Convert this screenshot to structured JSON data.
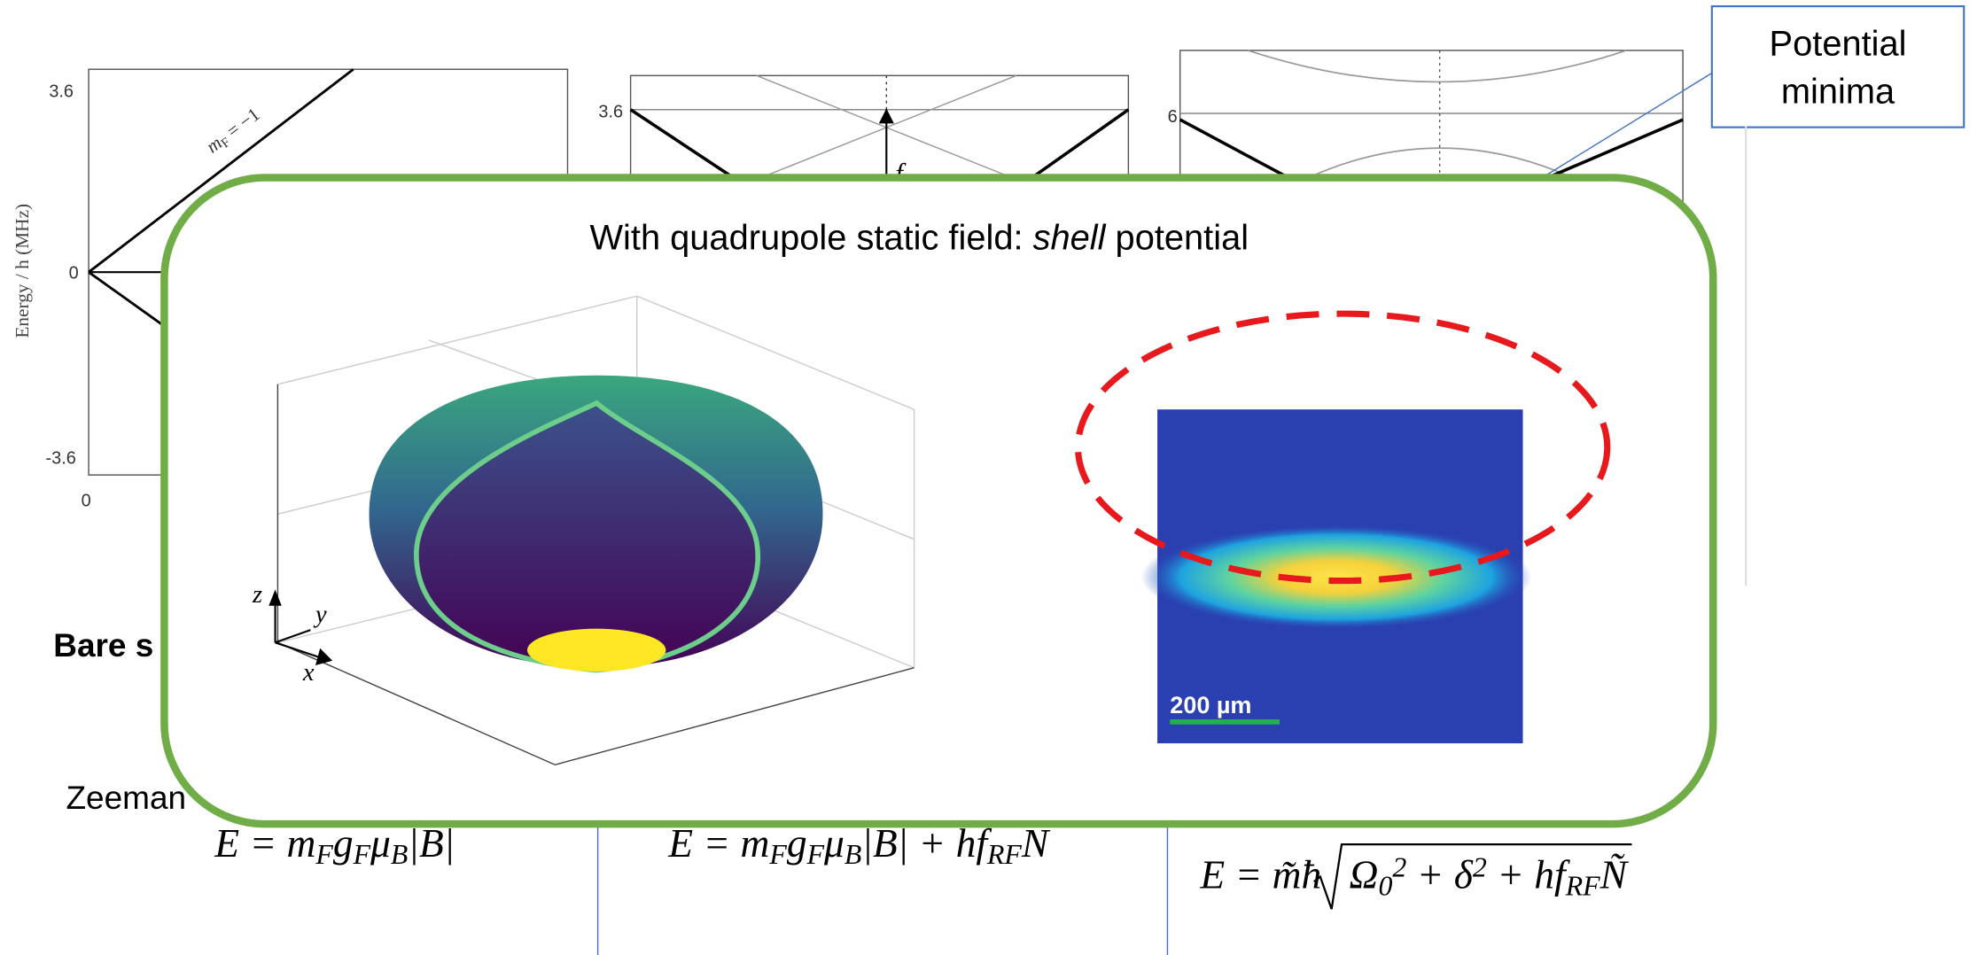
{
  "plots": [
    {
      "yticks": [
        "3.6",
        "0",
        "-3.6"
      ],
      "xticks": [
        "0"
      ],
      "ylabel": "Energy / h (MHz)",
      "line_label": [
        {
          "text": "m",
          "italic": true
        },
        {
          "text": "F",
          "sub": true
        },
        {
          "text": " = −1"
        }
      ]
    },
    {
      "yticks": [
        "3.6"
      ],
      "arrow_label": "f"
    },
    {
      "yticks": [
        "6"
      ]
    }
  ],
  "callout": {
    "lines": [
      "Potential",
      "minima"
    ]
  },
  "background_texts": {
    "heading": "Bare s",
    "body": "Zeeman"
  },
  "overlay": {
    "title": [
      {
        "text": "With quadrupole static field: "
      },
      {
        "text": "shell",
        "italic": true
      },
      {
        "text": " potential"
      }
    ],
    "axis_labels": [
      "z",
      "y",
      "x"
    ],
    "scale_bar": "200 µm"
  },
  "equations": [
    [
      {
        "text": "E = m"
      },
      {
        "text": "F",
        "sub": true
      },
      {
        "text": "g"
      },
      {
        "text": "F",
        "sub": true
      },
      {
        "text": "μ"
      },
      {
        "text": "B",
        "sub": true
      },
      {
        "text": "|B|"
      }
    ],
    [
      {
        "text": "E = m"
      },
      {
        "text": "F",
        "sub": true
      },
      {
        "text": "g"
      },
      {
        "text": "F",
        "sub": true
      },
      {
        "text": "μ"
      },
      {
        "text": "B",
        "sub": true
      },
      {
        "text": "|B| + hf"
      },
      {
        "text": "RF",
        "sub": true
      },
      {
        "text": "N"
      }
    ],
    [
      {
        "text": "E = m̃ħ"
      },
      {
        "text": "Ω"
      },
      {
        "text": "0",
        "sub": true
      },
      {
        "text": "2",
        "sup": true
      },
      {
        "text": " + δ"
      },
      {
        "text": "2",
        "sup": true
      },
      {
        "text": " + hf"
      },
      {
        "text": "RF",
        "sub": true
      },
      {
        "text": "Ñ"
      }
    ]
  ]
}
